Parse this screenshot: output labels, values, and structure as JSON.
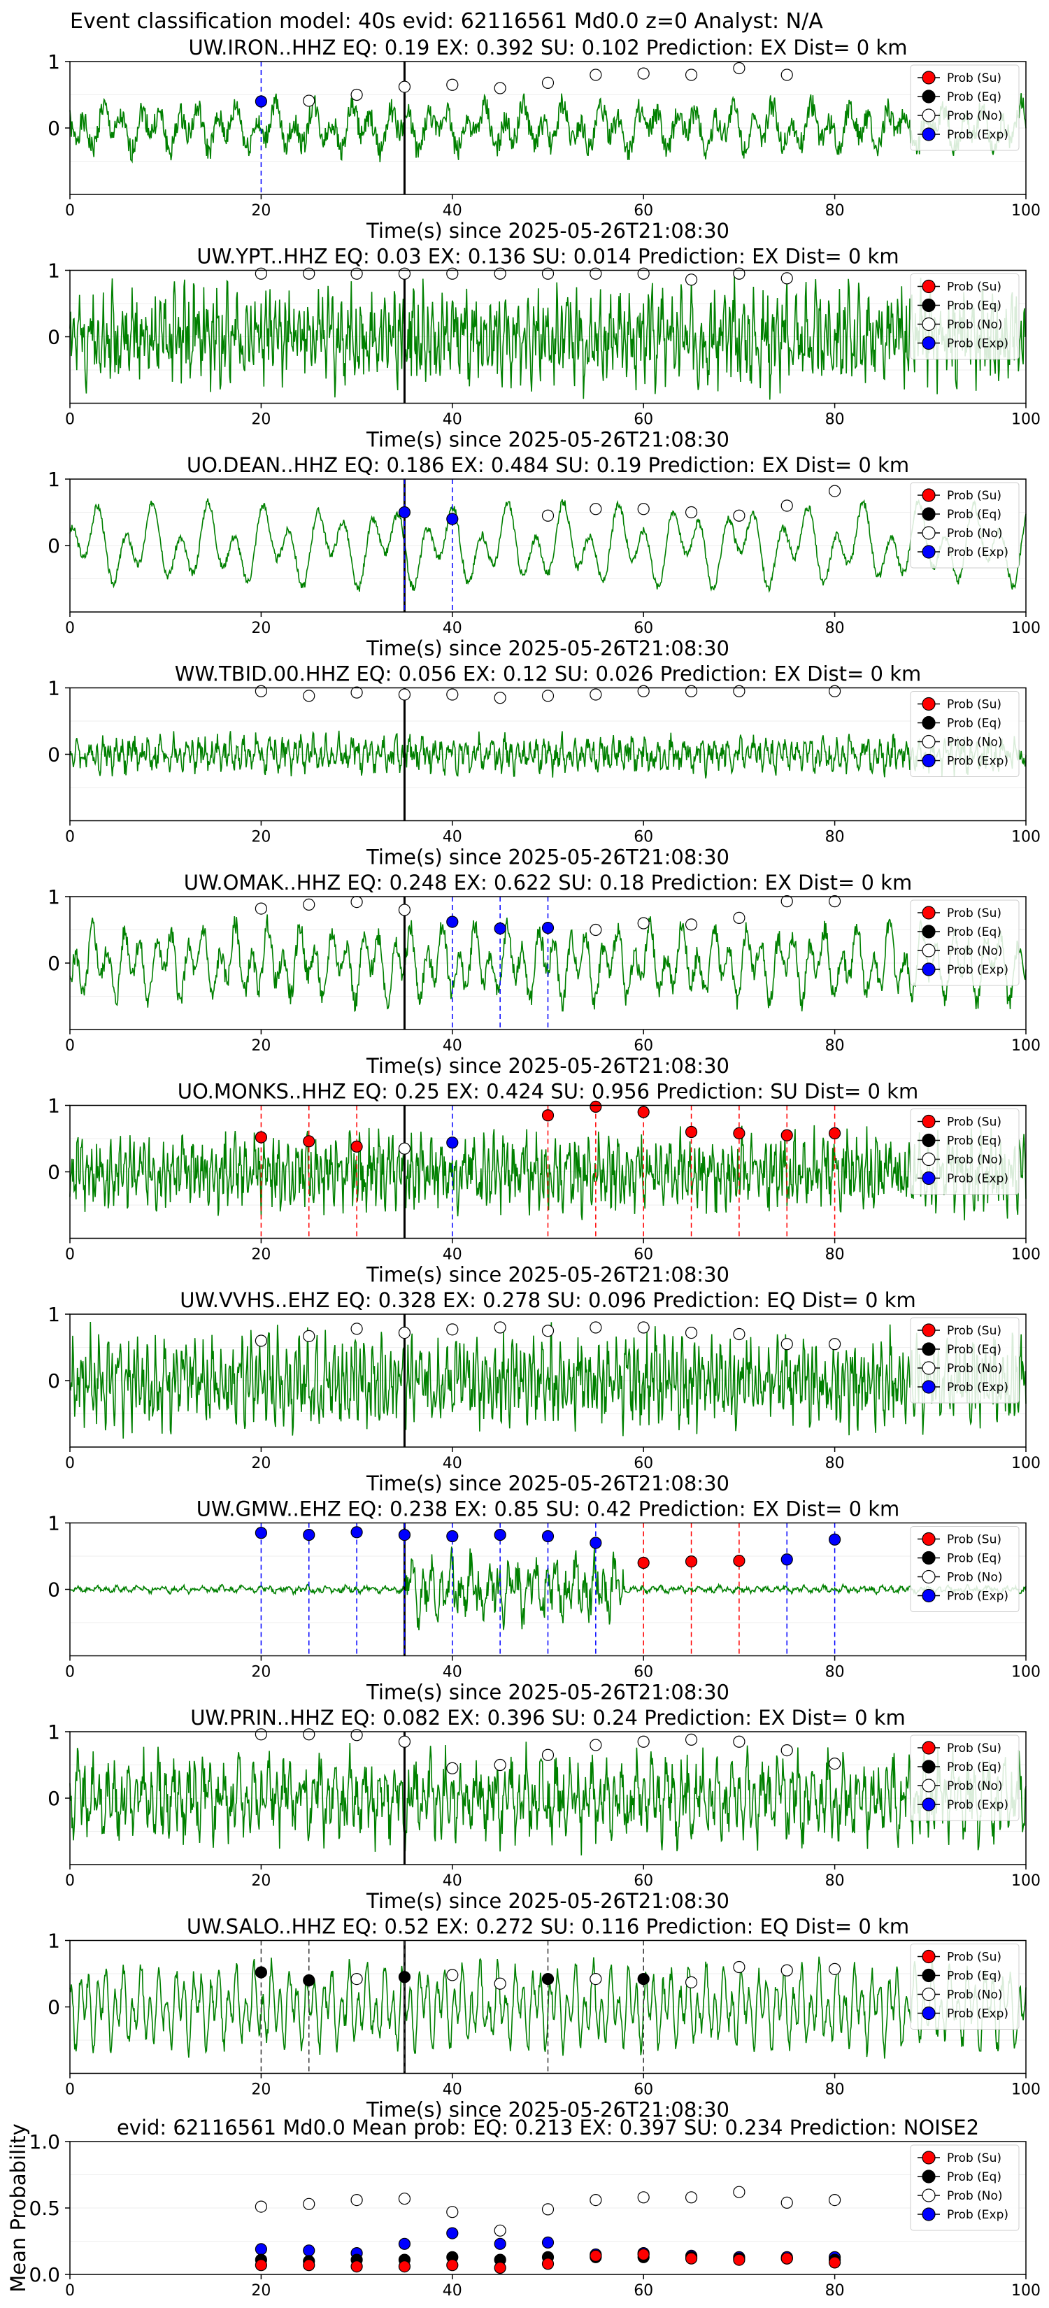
{
  "figure": {
    "suptitle": "Event classification model: 40s evid: 62116561 Md0.0 z=0 Analyst: N/A"
  },
  "legend": {
    "entries": [
      {
        "label": "Prob (Su)",
        "color": "#ff0000"
      },
      {
        "label": "Prob (Eq)",
        "color": "#000000"
      },
      {
        "label": "Prob (No)",
        "color": "#ffffff"
      },
      {
        "label": "Prob (Exp)",
        "color": "#0000ff"
      }
    ]
  },
  "colors": {
    "waveform": "#008000",
    "Su": "#ff0000",
    "Eq": "#000000",
    "No": "#ffffff",
    "Exp": "#0000ff",
    "origin_line": "#000000"
  },
  "chart_data": [
    {
      "type": "scatter",
      "title": "UW.IRON..HHZ   EQ: 0.19  EX: 0.392  SU: 0.102   Prediction: EX    Dist= 0 km",
      "xlabel": "Time(s) since 2025-05-26T21:08:30",
      "xlim": [
        0,
        100
      ],
      "ylim": [
        -1,
        1
      ],
      "xticks": [
        "0",
        "20",
        "40",
        "60",
        "80",
        "100"
      ],
      "yticks": [
        "1",
        "0"
      ],
      "origin_time": 35,
      "waveform": {
        "amp": 0.3,
        "freq": 0.5,
        "noise": 0.3,
        "seed": 1
      },
      "points": [
        {
          "x": 20,
          "y": 0.4,
          "cls": "Exp"
        },
        {
          "x": 25,
          "y": 0.41,
          "cls": "No"
        },
        {
          "x": 30,
          "y": 0.5,
          "cls": "No"
        },
        {
          "x": 35,
          "y": 0.62,
          "cls": "No"
        },
        {
          "x": 40,
          "y": 0.65,
          "cls": "No"
        },
        {
          "x": 45,
          "y": 0.6,
          "cls": "No"
        },
        {
          "x": 50,
          "y": 0.68,
          "cls": "No"
        },
        {
          "x": 55,
          "y": 0.8,
          "cls": "No"
        },
        {
          "x": 60,
          "y": 0.82,
          "cls": "No"
        },
        {
          "x": 65,
          "y": 0.8,
          "cls": "No"
        },
        {
          "x": 70,
          "y": 0.9,
          "cls": "No"
        },
        {
          "x": 75,
          "y": 0.8,
          "cls": "No"
        }
      ]
    },
    {
      "type": "scatter",
      "title": "UW.YPT..HHZ   EQ: 0.03  EX: 0.136  SU: 0.014   Prediction: EX    Dist= 0 km",
      "xlabel": "Time(s) since 2025-05-26T21:08:30",
      "xlim": [
        0,
        100
      ],
      "ylim": [
        -1,
        1
      ],
      "xticks": [
        "0",
        "20",
        "40",
        "60",
        "80",
        "100"
      ],
      "yticks": [
        "1",
        "0"
      ],
      "origin_time": 35,
      "waveform": {
        "amp": 0.45,
        "freq": 2.0,
        "noise": 0.7,
        "seed": 2
      },
      "points": [
        {
          "x": 20,
          "y": 0.95,
          "cls": "No"
        },
        {
          "x": 25,
          "y": 0.95,
          "cls": "No"
        },
        {
          "x": 30,
          "y": 0.95,
          "cls": "No"
        },
        {
          "x": 35,
          "y": 0.95,
          "cls": "No"
        },
        {
          "x": 40,
          "y": 0.95,
          "cls": "No"
        },
        {
          "x": 45,
          "y": 0.95,
          "cls": "No"
        },
        {
          "x": 50,
          "y": 0.95,
          "cls": "No"
        },
        {
          "x": 55,
          "y": 0.95,
          "cls": "No"
        },
        {
          "x": 60,
          "y": 0.95,
          "cls": "No"
        },
        {
          "x": 65,
          "y": 0.86,
          "cls": "No"
        },
        {
          "x": 70,
          "y": 0.95,
          "cls": "No"
        },
        {
          "x": 75,
          "y": 0.88,
          "cls": "No"
        }
      ]
    },
    {
      "type": "scatter",
      "title": "UO.DEAN..HHZ   EQ: 0.186  EX: 0.484  SU: 0.19   Prediction: EX    Dist= 0 km",
      "xlabel": "Time(s) since 2025-05-26T21:08:30",
      "xlim": [
        0,
        100
      ],
      "ylim": [
        -1,
        1
      ],
      "xticks": [
        "0",
        "20",
        "40",
        "60",
        "80",
        "100"
      ],
      "yticks": [
        "1",
        "0"
      ],
      "origin_time": 35,
      "waveform": {
        "amp": 0.55,
        "freq": 0.35,
        "noise": 0.1,
        "seed": 3
      },
      "points": [
        {
          "x": 35,
          "y": 0.5,
          "cls": "Exp"
        },
        {
          "x": 40,
          "y": 0.4,
          "cls": "Exp"
        },
        {
          "x": 50,
          "y": 0.45,
          "cls": "No"
        },
        {
          "x": 55,
          "y": 0.55,
          "cls": "No"
        },
        {
          "x": 60,
          "y": 0.55,
          "cls": "No"
        },
        {
          "x": 65,
          "y": 0.5,
          "cls": "No"
        },
        {
          "x": 70,
          "y": 0.45,
          "cls": "No"
        },
        {
          "x": 75,
          "y": 0.6,
          "cls": "No"
        },
        {
          "x": 80,
          "y": 0.82,
          "cls": "No"
        }
      ]
    },
    {
      "type": "scatter",
      "title": "WW.TBID.00.HHZ   EQ: 0.056  EX: 0.12  SU: 0.026   Prediction: EX    Dist= 0 km",
      "xlabel": "Time(s) since 2025-05-26T21:08:30",
      "xlim": [
        0,
        100
      ],
      "ylim": [
        -1,
        1
      ],
      "xticks": [
        "0",
        "20",
        "40",
        "60",
        "80",
        "100"
      ],
      "yticks": [
        "1",
        "0"
      ],
      "origin_time": 35,
      "waveform": {
        "amp": 0.18,
        "freq": 1.5,
        "noise": 0.25,
        "seed": 4
      },
      "points": [
        {
          "x": 20,
          "y": 0.95,
          "cls": "No"
        },
        {
          "x": 25,
          "y": 0.88,
          "cls": "No"
        },
        {
          "x": 30,
          "y": 0.93,
          "cls": "No"
        },
        {
          "x": 35,
          "y": 0.9,
          "cls": "No"
        },
        {
          "x": 40,
          "y": 0.9,
          "cls": "No"
        },
        {
          "x": 45,
          "y": 0.85,
          "cls": "No"
        },
        {
          "x": 50,
          "y": 0.88,
          "cls": "No"
        },
        {
          "x": 55,
          "y": 0.9,
          "cls": "No"
        },
        {
          "x": 60,
          "y": 0.95,
          "cls": "No"
        },
        {
          "x": 65,
          "y": 0.95,
          "cls": "No"
        },
        {
          "x": 70,
          "y": 0.95,
          "cls": "No"
        },
        {
          "x": 80,
          "y": 0.95,
          "cls": "No"
        }
      ]
    },
    {
      "type": "scatter",
      "title": "UW.OMAK..HHZ   EQ: 0.248  EX: 0.622  SU: 0.18   Prediction: EX    Dist= 0 km",
      "xlabel": "Time(s) since 2025-05-26T21:08:30",
      "xlim": [
        0,
        100
      ],
      "ylim": [
        -1,
        1
      ],
      "xticks": [
        "0",
        "20",
        "40",
        "60",
        "80",
        "100"
      ],
      "yticks": [
        "1",
        "0"
      ],
      "origin_time": 35,
      "waveform": {
        "amp": 0.5,
        "freq": 0.6,
        "noise": 0.25,
        "seed": 5
      },
      "points": [
        {
          "x": 20,
          "y": 0.82,
          "cls": "No"
        },
        {
          "x": 25,
          "y": 0.88,
          "cls": "No"
        },
        {
          "x": 30,
          "y": 0.92,
          "cls": "No"
        },
        {
          "x": 35,
          "y": 0.8,
          "cls": "No"
        },
        {
          "x": 40,
          "y": 0.62,
          "cls": "Exp"
        },
        {
          "x": 45,
          "y": 0.52,
          "cls": "Exp"
        },
        {
          "x": 50,
          "y": 0.53,
          "cls": "Exp"
        },
        {
          "x": 55,
          "y": 0.5,
          "cls": "No"
        },
        {
          "x": 60,
          "y": 0.6,
          "cls": "No"
        },
        {
          "x": 65,
          "y": 0.58,
          "cls": "No"
        },
        {
          "x": 70,
          "y": 0.68,
          "cls": "No"
        },
        {
          "x": 75,
          "y": 0.93,
          "cls": "No"
        },
        {
          "x": 80,
          "y": 0.93,
          "cls": "No"
        }
      ]
    },
    {
      "type": "scatter",
      "title": "UO.MONKS..HHZ   EQ: 0.25  EX: 0.424  SU: 0.956   Prediction: SU    Dist= 0 km",
      "xlabel": "Time(s) since 2025-05-26T21:08:30",
      "xlim": [
        0,
        100
      ],
      "ylim": [
        -1,
        1
      ],
      "xticks": [
        "0",
        "20",
        "40",
        "60",
        "80",
        "100"
      ],
      "yticks": [
        "1",
        "0"
      ],
      "origin_time": 35,
      "waveform": {
        "amp": 0.35,
        "freq": 2.0,
        "noise": 0.55,
        "seed": 6
      },
      "points": [
        {
          "x": 20,
          "y": 0.52,
          "cls": "Su"
        },
        {
          "x": 25,
          "y": 0.46,
          "cls": "Su"
        },
        {
          "x": 30,
          "y": 0.38,
          "cls": "Su"
        },
        {
          "x": 35,
          "y": 0.35,
          "cls": "No"
        },
        {
          "x": 40,
          "y": 0.44,
          "cls": "Exp"
        },
        {
          "x": 50,
          "y": 0.85,
          "cls": "Su"
        },
        {
          "x": 55,
          "y": 0.98,
          "cls": "Su"
        },
        {
          "x": 60,
          "y": 0.9,
          "cls": "Su"
        },
        {
          "x": 65,
          "y": 0.6,
          "cls": "Su"
        },
        {
          "x": 70,
          "y": 0.58,
          "cls": "Su"
        },
        {
          "x": 75,
          "y": 0.55,
          "cls": "Su"
        },
        {
          "x": 80,
          "y": 0.58,
          "cls": "Su"
        }
      ]
    },
    {
      "type": "scatter",
      "title": "UW.VVHS..EHZ   EQ: 0.328  EX: 0.278  SU: 0.096   Prediction: EQ    Dist= 0 km",
      "xlabel": "Time(s) since 2025-05-26T21:08:30",
      "xlim": [
        0,
        100
      ],
      "ylim": [
        -1,
        1
      ],
      "xticks": [
        "0",
        "20",
        "40",
        "60",
        "80",
        "100"
      ],
      "yticks": [
        "1",
        "0"
      ],
      "origin_time": 35,
      "waveform": {
        "amp": 0.45,
        "freq": 2.2,
        "noise": 0.6,
        "seed": 7
      },
      "points": [
        {
          "x": 20,
          "y": 0.6,
          "cls": "No"
        },
        {
          "x": 25,
          "y": 0.67,
          "cls": "No"
        },
        {
          "x": 30,
          "y": 0.78,
          "cls": "No"
        },
        {
          "x": 35,
          "y": 0.72,
          "cls": "No"
        },
        {
          "x": 40,
          "y": 0.77,
          "cls": "No"
        },
        {
          "x": 45,
          "y": 0.8,
          "cls": "No"
        },
        {
          "x": 50,
          "y": 0.75,
          "cls": "No"
        },
        {
          "x": 55,
          "y": 0.8,
          "cls": "No"
        },
        {
          "x": 60,
          "y": 0.8,
          "cls": "No"
        },
        {
          "x": 65,
          "y": 0.72,
          "cls": "No"
        },
        {
          "x": 70,
          "y": 0.7,
          "cls": "No"
        },
        {
          "x": 75,
          "y": 0.55,
          "cls": "No"
        },
        {
          "x": 80,
          "y": 0.55,
          "cls": "No"
        }
      ]
    },
    {
      "type": "scatter",
      "title": "UW.GMW..EHZ   EQ: 0.238  EX: 0.85  SU: 0.42   Prediction: EX    Dist= 0 km",
      "xlabel": "Time(s) since 2025-05-26T21:08:30",
      "xlim": [
        0,
        100
      ],
      "ylim": [
        -1,
        1
      ],
      "xticks": [
        "0",
        "20",
        "40",
        "60",
        "80",
        "100"
      ],
      "yticks": [
        "1",
        "0"
      ],
      "origin_time": 35,
      "waveform": {
        "amp": 0.04,
        "freq": 1.0,
        "noise": 0.05,
        "seed": 8,
        "burst": [
          35,
          58,
          0.35
        ]
      },
      "points": [
        {
          "x": 20,
          "y": 0.85,
          "cls": "Exp"
        },
        {
          "x": 25,
          "y": 0.82,
          "cls": "Exp"
        },
        {
          "x": 30,
          "y": 0.86,
          "cls": "Exp"
        },
        {
          "x": 35,
          "y": 0.82,
          "cls": "Exp"
        },
        {
          "x": 40,
          "y": 0.8,
          "cls": "Exp"
        },
        {
          "x": 45,
          "y": 0.82,
          "cls": "Exp"
        },
        {
          "x": 50,
          "y": 0.8,
          "cls": "Exp"
        },
        {
          "x": 55,
          "y": 0.7,
          "cls": "Exp"
        },
        {
          "x": 60,
          "y": 0.4,
          "cls": "Su"
        },
        {
          "x": 65,
          "y": 0.42,
          "cls": "Su"
        },
        {
          "x": 70,
          "y": 0.43,
          "cls": "Su"
        },
        {
          "x": 75,
          "y": 0.45,
          "cls": "Exp"
        },
        {
          "x": 80,
          "y": 0.75,
          "cls": "Exp"
        }
      ]
    },
    {
      "type": "scatter",
      "title": "UW.PRIN..HHZ   EQ: 0.082  EX: 0.396  SU: 0.24   Prediction: EX    Dist= 0 km",
      "xlabel": "Time(s) since 2025-05-26T21:08:30",
      "xlim": [
        0,
        100
      ],
      "ylim": [
        -1,
        1
      ],
      "xticks": [
        "0",
        "20",
        "40",
        "60",
        "80",
        "100"
      ],
      "yticks": [
        "1",
        "0"
      ],
      "origin_time": 35,
      "waveform": {
        "amp": 0.45,
        "freq": 1.3,
        "noise": 0.55,
        "seed": 9
      },
      "points": [
        {
          "x": 20,
          "y": 0.96,
          "cls": "No"
        },
        {
          "x": 25,
          "y": 0.96,
          "cls": "No"
        },
        {
          "x": 30,
          "y": 0.95,
          "cls": "No"
        },
        {
          "x": 35,
          "y": 0.85,
          "cls": "No"
        },
        {
          "x": 40,
          "y": 0.45,
          "cls": "No"
        },
        {
          "x": 45,
          "y": 0.5,
          "cls": "No"
        },
        {
          "x": 50,
          "y": 0.65,
          "cls": "No"
        },
        {
          "x": 55,
          "y": 0.8,
          "cls": "No"
        },
        {
          "x": 60,
          "y": 0.85,
          "cls": "No"
        },
        {
          "x": 65,
          "y": 0.88,
          "cls": "No"
        },
        {
          "x": 70,
          "y": 0.85,
          "cls": "No"
        },
        {
          "x": 75,
          "y": 0.72,
          "cls": "No"
        },
        {
          "x": 80,
          "y": 0.52,
          "cls": "No"
        }
      ]
    },
    {
      "type": "scatter",
      "title": "UW.SALO..HHZ   EQ: 0.52  EX: 0.272  SU: 0.116   Prediction: EQ    Dist= 0 km",
      "xlabel": "Time(s) since 2025-05-26T21:08:30",
      "xlim": [
        0,
        100
      ],
      "ylim": [
        -1,
        1
      ],
      "xticks": [
        "0",
        "20",
        "40",
        "60",
        "80",
        "100"
      ],
      "yticks": [
        "1",
        "0"
      ],
      "origin_time": 35,
      "waveform": {
        "amp": 0.55,
        "freq": 1.1,
        "noise": 0.2,
        "seed": 10
      },
      "points": [
        {
          "x": 20,
          "y": 0.52,
          "cls": "Eq"
        },
        {
          "x": 25,
          "y": 0.4,
          "cls": "Eq"
        },
        {
          "x": 30,
          "y": 0.42,
          "cls": "No"
        },
        {
          "x": 35,
          "y": 0.45,
          "cls": "Eq"
        },
        {
          "x": 40,
          "y": 0.48,
          "cls": "No"
        },
        {
          "x": 45,
          "y": 0.35,
          "cls": "No"
        },
        {
          "x": 50,
          "y": 0.42,
          "cls": "Eq"
        },
        {
          "x": 55,
          "y": 0.42,
          "cls": "No"
        },
        {
          "x": 60,
          "y": 0.42,
          "cls": "Eq"
        },
        {
          "x": 65,
          "y": 0.37,
          "cls": "No"
        },
        {
          "x": 70,
          "y": 0.6,
          "cls": "No"
        },
        {
          "x": 75,
          "y": 0.55,
          "cls": "No"
        },
        {
          "x": 80,
          "y": 0.57,
          "cls": "No"
        }
      ]
    },
    {
      "type": "scatter",
      "title": "evid: 62116561  Md0.0   Mean prob:   EQ: 0.213  EX: 0.397  SU: 0.234   Prediction: NOISE2",
      "xlabel": "",
      "ylabel": "Mean Probability",
      "xlim": [
        0,
        100
      ],
      "ylim": [
        0,
        1
      ],
      "xticks": [
        "0",
        "20",
        "40",
        "60",
        "80",
        "100"
      ],
      "yticks": [
        "0.0",
        "0.5",
        "1.0"
      ],
      "x": [
        20,
        25,
        30,
        35,
        40,
        45,
        50,
        55,
        60,
        65,
        70,
        75,
        80
      ],
      "series": [
        {
          "name": "Prob (No)",
          "cls": "No",
          "values": [
            0.51,
            0.53,
            0.56,
            0.57,
            0.47,
            0.33,
            0.49,
            0.56,
            0.58,
            0.58,
            0.62,
            0.54,
            0.56
          ]
        },
        {
          "name": "Prob (Exp)",
          "cls": "Exp",
          "values": [
            0.19,
            0.18,
            0.16,
            0.23,
            0.31,
            0.23,
            0.24,
            0.15,
            0.16,
            0.14,
            0.13,
            0.13,
            0.13
          ]
        },
        {
          "name": "Prob (Eq)",
          "cls": "Eq",
          "values": [
            0.11,
            0.1,
            0.11,
            0.11,
            0.13,
            0.11,
            0.13,
            0.13,
            0.13,
            0.13,
            0.12,
            0.12,
            0.11
          ]
        },
        {
          "name": "Prob (Su)",
          "cls": "Su",
          "values": [
            0.07,
            0.07,
            0.06,
            0.06,
            0.07,
            0.05,
            0.08,
            0.14,
            0.15,
            0.12,
            0.11,
            0.12,
            0.09
          ]
        }
      ]
    }
  ]
}
